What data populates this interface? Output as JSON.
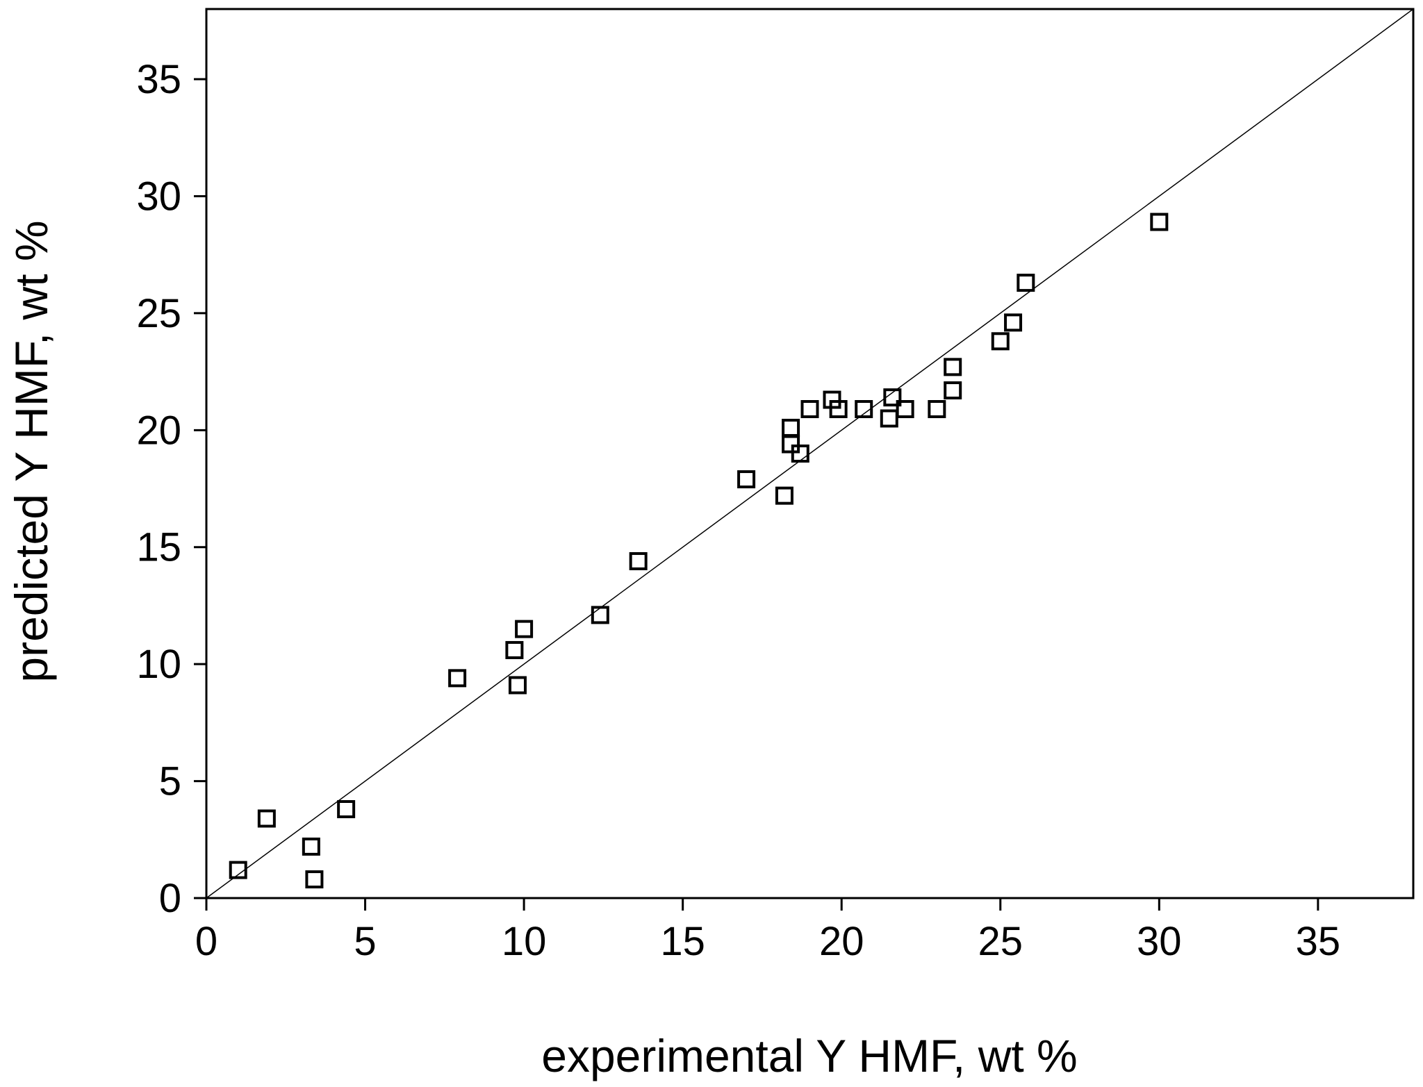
{
  "chart_data": {
    "type": "scatter",
    "title": "",
    "xlabel": "experimental Y HMF, wt %",
    "ylabel": "predicted Y HMF, wt %",
    "xlim": [
      0,
      38
    ],
    "ylim": [
      0,
      38
    ],
    "x_ticks": [
      0,
      5,
      10,
      15,
      20,
      25,
      30,
      35
    ],
    "y_ticks": [
      0,
      5,
      10,
      15,
      20,
      25,
      30,
      35
    ],
    "grid": false,
    "marker": "open-square",
    "reference_line": {
      "from": [
        0,
        0
      ],
      "to": [
        38,
        38
      ]
    },
    "points": [
      {
        "x": 1.0,
        "y": 1.2
      },
      {
        "x": 1.9,
        "y": 3.4
      },
      {
        "x": 3.3,
        "y": 2.2
      },
      {
        "x": 3.4,
        "y": 0.8
      },
      {
        "x": 4.4,
        "y": 3.8
      },
      {
        "x": 7.9,
        "y": 9.4
      },
      {
        "x": 9.7,
        "y": 10.6
      },
      {
        "x": 9.8,
        "y": 9.1
      },
      {
        "x": 10.0,
        "y": 11.5
      },
      {
        "x": 12.4,
        "y": 12.1
      },
      {
        "x": 13.6,
        "y": 14.4
      },
      {
        "x": 17.0,
        "y": 17.9
      },
      {
        "x": 18.2,
        "y": 17.2
      },
      {
        "x": 18.4,
        "y": 20.1
      },
      {
        "x": 18.4,
        "y": 19.4
      },
      {
        "x": 18.7,
        "y": 19.0
      },
      {
        "x": 19.0,
        "y": 20.9
      },
      {
        "x": 19.7,
        "y": 21.3
      },
      {
        "x": 19.9,
        "y": 20.9
      },
      {
        "x": 20.7,
        "y": 20.9
      },
      {
        "x": 21.5,
        "y": 20.5
      },
      {
        "x": 21.6,
        "y": 21.4
      },
      {
        "x": 22.0,
        "y": 20.9
      },
      {
        "x": 23.0,
        "y": 20.9
      },
      {
        "x": 23.5,
        "y": 22.7
      },
      {
        "x": 23.5,
        "y": 21.7
      },
      {
        "x": 25.0,
        "y": 23.8
      },
      {
        "x": 25.4,
        "y": 24.6
      },
      {
        "x": 25.8,
        "y": 26.3
      },
      {
        "x": 30.0,
        "y": 28.9
      }
    ]
  }
}
